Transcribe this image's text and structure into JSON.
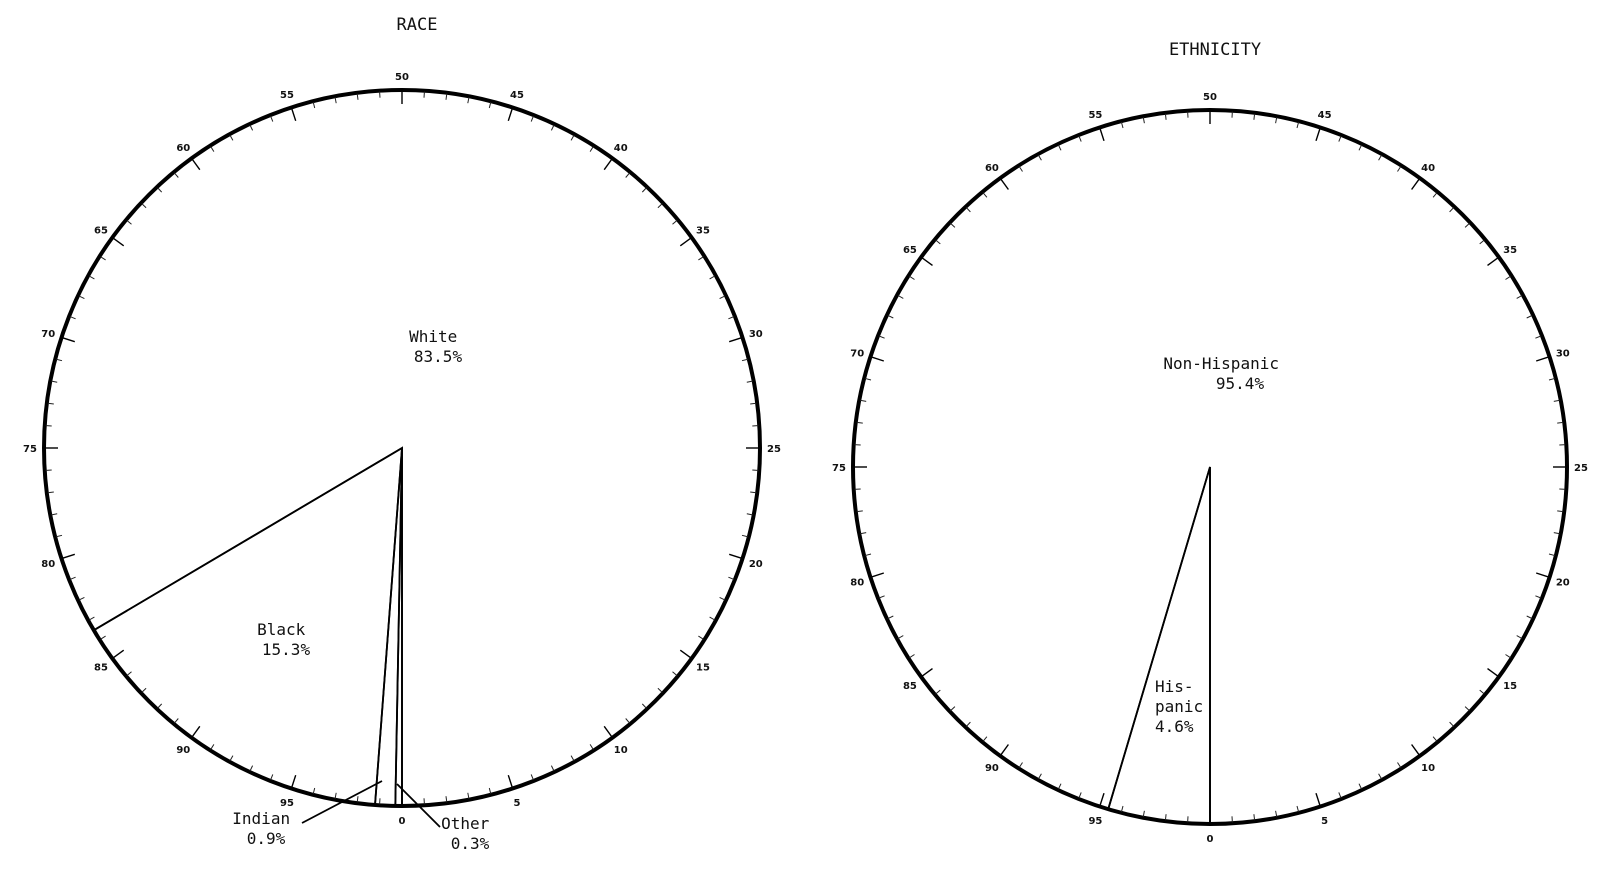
{
  "chart_data": [
    {
      "type": "pie",
      "title": "RACE",
      "ring_ticks": [
        "0",
        "5",
        "10",
        "15",
        "20",
        "25",
        "30",
        "35",
        "40",
        "45",
        "50",
        "55",
        "60",
        "65",
        "70",
        "75",
        "80",
        "85",
        "90",
        "95"
      ],
      "slices": [
        {
          "name": "White",
          "label_line1": "White",
          "label_line2": "83.5%",
          "value": 83.5
        },
        {
          "name": "Black",
          "label_line1": "Black",
          "label_line2": "15.3%",
          "value": 15.3
        },
        {
          "name": "Indian",
          "label_line1": "Indian",
          "label_line2": "0.9%",
          "value": 0.9
        },
        {
          "name": "Other",
          "label_line1": "Other",
          "label_line2": "0.3%",
          "value": 0.3
        }
      ]
    },
    {
      "type": "pie",
      "title": "ETHNICITY",
      "ring_ticks": [
        "0",
        "5",
        "10",
        "15",
        "20",
        "25",
        "30",
        "35",
        "40",
        "45",
        "50",
        "55",
        "60",
        "65",
        "70",
        "75",
        "80",
        "85",
        "90",
        "95"
      ],
      "slices": [
        {
          "name": "Non-Hispanic",
          "label_line1": "Non-Hispanic",
          "label_line2": "95.4%",
          "value": 95.4
        },
        {
          "name": "Hispanic",
          "label_line1": "His-",
          "label_line2": "panic",
          "label_line3": "4.6%",
          "value": 4.6
        }
      ]
    }
  ]
}
